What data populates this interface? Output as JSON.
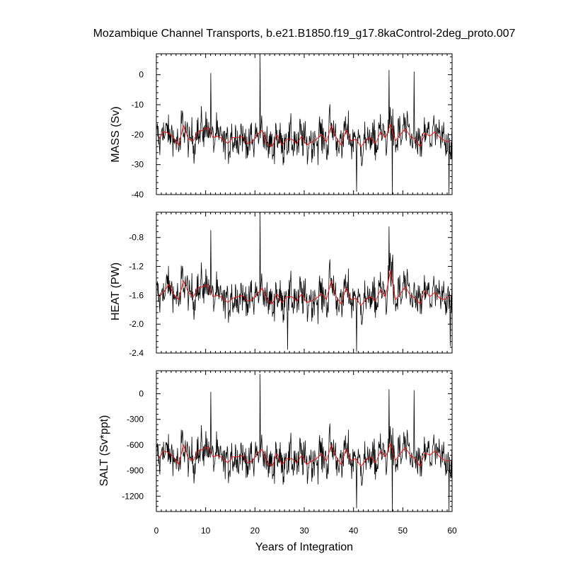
{
  "chart_data": {
    "type": "line",
    "title": "Mozambique Channel Transports, b.e21.B1850.f19_g17.8kaControl-2deg_proto.007",
    "xlabel": "Years of Integration",
    "xlim": [
      0,
      60
    ],
    "xticks": [
      0,
      10,
      20,
      30,
      40,
      50,
      60
    ],
    "shared_x_axis": true,
    "series_style": {
      "monthly": "#000000",
      "annual_mean": "#ff0000"
    },
    "panels": [
      {
        "ylabel": "MASS (Sv)",
        "ylim": [
          -40,
          7
        ],
        "yticks": [
          0,
          -10,
          -20,
          -30,
          -40
        ],
        "ytick_labels": [
          "0",
          "-10",
          "-20",
          "-30",
          "-40"
        ],
        "annual_mean": [
          -21.5,
          -19.0,
          -19.5,
          -21.0,
          -23.5,
          -17.0,
          -21.5,
          -22.0,
          -19.0,
          -18.5,
          -17.5,
          -21.0,
          -20.5,
          -21.5,
          -23.0,
          -21.0,
          -21.0,
          -20.5,
          -23.0,
          -22.5,
          -20.0,
          -18.5,
          -23.0,
          -24.0,
          -20.0,
          -23.5,
          -21.5,
          -21.5,
          -23.0,
          -20.5,
          -23.5,
          -22.5,
          -21.5,
          -20.0,
          -22.5,
          -17.0,
          -21.0,
          -23.5,
          -18.5,
          -22.0,
          -21.5,
          -24.0,
          -22.0,
          -21.0,
          -23.0,
          -19.0,
          -21.0,
          -16.5,
          -22.0,
          -20.0,
          -18.0,
          -20.5,
          -21.5,
          -24.0,
          -19.5,
          -20.5,
          -19.0,
          -21.0,
          -22.0,
          -22.5
        ],
        "extremes": [
          {
            "year": 21.0,
            "value": 6.5
          },
          {
            "year": 11.0,
            "value": 0.5
          },
          {
            "year": 47.2,
            "value": 1.5
          },
          {
            "year": 52.3,
            "value": 1.0
          },
          {
            "year": 59.4,
            "value": -40.0
          },
          {
            "year": 47.9,
            "value": -40.0
          },
          {
            "year": 40.6,
            "value": -39.0
          }
        ]
      },
      {
        "ylabel": "HEAT (PW)",
        "ylim": [
          -2.4,
          -0.45
        ],
        "yticks": [
          -0.8,
          -1.2,
          -1.6,
          -2.0,
          -2.4
        ],
        "ytick_labels": [
          "-0.8",
          "-1.2",
          "-1.6",
          "-2.0",
          "-2.4"
        ],
        "annual_mean": [
          -1.62,
          -1.56,
          -1.45,
          -1.58,
          -1.66,
          -1.4,
          -1.56,
          -1.62,
          -1.5,
          -1.48,
          -1.45,
          -1.62,
          -1.6,
          -1.64,
          -1.7,
          -1.64,
          -1.62,
          -1.6,
          -1.68,
          -1.66,
          -1.58,
          -1.5,
          -1.66,
          -1.72,
          -1.58,
          -1.7,
          -1.62,
          -1.62,
          -1.68,
          -1.58,
          -1.7,
          -1.68,
          -1.64,
          -1.58,
          -1.66,
          -1.4,
          -1.62,
          -1.72,
          -1.5,
          -1.66,
          -1.64,
          -1.74,
          -1.66,
          -1.62,
          -1.68,
          -1.52,
          -1.62,
          -1.25,
          -1.66,
          -1.58,
          -1.48,
          -1.6,
          -1.64,
          -1.72,
          -1.54,
          -1.62,
          -1.56,
          -1.64,
          -1.66,
          -1.6
        ],
        "extremes": [
          {
            "year": 21.0,
            "value": -0.46
          },
          {
            "year": 47.2,
            "value": -0.65
          },
          {
            "year": 11.0,
            "value": -0.7
          },
          {
            "year": 26.6,
            "value": -2.35
          },
          {
            "year": 59.6,
            "value": -2.3
          },
          {
            "year": 40.6,
            "value": -2.38
          }
        ]
      },
      {
        "ylabel": "SALT (Sv*ppt)",
        "ylim": [
          -1380,
          270
        ],
        "yticks": [
          0,
          -300,
          -600,
          -900,
          -1200
        ],
        "ytick_labels": [
          "0",
          "-300",
          "-600",
          "-900",
          "-1200"
        ],
        "annual_mean": [
          -760,
          -670,
          -690,
          -740,
          -830,
          -600,
          -760,
          -780,
          -670,
          -650,
          -620,
          -740,
          -720,
          -760,
          -810,
          -740,
          -740,
          -720,
          -810,
          -790,
          -700,
          -650,
          -810,
          -850,
          -700,
          -830,
          -760,
          -760,
          -810,
          -720,
          -830,
          -790,
          -760,
          -700,
          -790,
          -600,
          -740,
          -830,
          -650,
          -780,
          -760,
          -850,
          -780,
          -740,
          -810,
          -670,
          -740,
          -580,
          -780,
          -700,
          -630,
          -720,
          -760,
          -850,
          -690,
          -720,
          -670,
          -740,
          -780,
          -790
        ],
        "extremes": [
          {
            "year": 21.0,
            "value": 230
          },
          {
            "year": 11.0,
            "value": 20
          },
          {
            "year": 47.2,
            "value": 50
          },
          {
            "year": 52.3,
            "value": 40
          },
          {
            "year": 59.4,
            "value": -1380
          },
          {
            "year": 47.9,
            "value": -1380
          },
          {
            "year": 40.6,
            "value": -1340
          }
        ]
      }
    ]
  }
}
